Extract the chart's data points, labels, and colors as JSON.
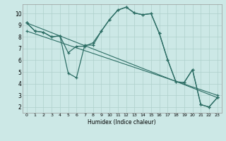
{
  "xlabel": "Humidex (Indice chaleur)",
  "background_color": "#cce8e6",
  "line_color": "#2d6e65",
  "grid_color": "#aed0cc",
  "xlim": [
    -0.5,
    23.5
  ],
  "ylim": [
    1.5,
    10.8
  ],
  "xticks": [
    0,
    1,
    2,
    3,
    4,
    5,
    6,
    7,
    8,
    9,
    10,
    11,
    12,
    13,
    14,
    15,
    16,
    17,
    18,
    19,
    20,
    21,
    22,
    23
  ],
  "yticks": [
    2,
    3,
    4,
    5,
    6,
    7,
    8,
    9,
    10
  ],
  "line1_x": [
    0,
    1,
    2,
    3,
    4,
    5,
    6,
    7,
    8,
    9,
    10,
    11,
    12,
    13,
    14,
    15,
    16,
    17,
    18,
    19,
    20,
    21,
    22,
    23
  ],
  "line1_y": [
    9.2,
    8.5,
    8.4,
    8.0,
    8.1,
    6.65,
    7.2,
    7.2,
    7.5,
    8.5,
    9.5,
    10.3,
    10.55,
    10.05,
    9.9,
    10.0,
    8.3,
    6.05,
    4.15,
    4.1,
    5.2,
    2.2,
    2.0,
    2.8
  ],
  "line2_x": [
    0,
    1,
    2,
    3,
    4,
    5,
    6,
    7,
    8,
    9,
    10,
    11,
    12,
    13,
    14,
    15,
    16,
    17,
    18,
    19,
    20,
    21,
    22,
    23
  ],
  "line2_y": [
    9.2,
    8.5,
    8.4,
    8.0,
    8.1,
    4.9,
    4.5,
    7.3,
    7.3,
    8.5,
    9.5,
    10.3,
    10.55,
    10.05,
    9.9,
    10.0,
    8.3,
    6.05,
    4.15,
    4.1,
    5.2,
    2.2,
    2.0,
    2.8
  ],
  "line3_x": [
    0,
    23
  ],
  "line3_y": [
    9.2,
    2.8
  ],
  "line4_x": [
    0,
    23
  ],
  "line4_y": [
    8.5,
    3.0
  ]
}
